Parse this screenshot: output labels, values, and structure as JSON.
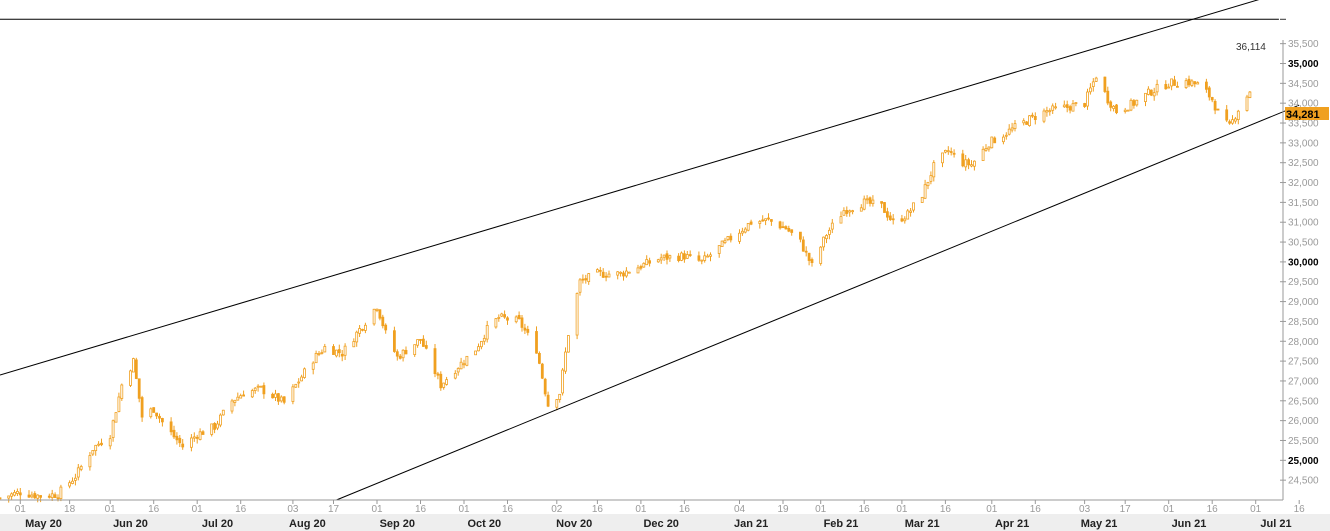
{
  "chart_data": {
    "type": "candlestick",
    "title": "",
    "xlabel": "",
    "ylabel": "",
    "ylim": [
      24000,
      36600
    ],
    "grid": false,
    "color": "#f0a020",
    "y_ticks": [
      {
        "value": 24500,
        "label": "24,500",
        "major": false
      },
      {
        "value": 25000,
        "label": "25,000",
        "major": true
      },
      {
        "value": 25500,
        "label": "25,500",
        "major": false
      },
      {
        "value": 26000,
        "label": "26,000",
        "major": false
      },
      {
        "value": 26500,
        "label": "26,500",
        "major": false
      },
      {
        "value": 27000,
        "label": "27,000",
        "major": false
      },
      {
        "value": 27500,
        "label": "27,500",
        "major": false
      },
      {
        "value": 28000,
        "label": "28,000",
        "major": false
      },
      {
        "value": 28500,
        "label": "28,500",
        "major": false
      },
      {
        "value": 29000,
        "label": "29,000",
        "major": false
      },
      {
        "value": 29500,
        "label": "29,500",
        "major": false
      },
      {
        "value": 30000,
        "label": "30,000",
        "major": true
      },
      {
        "value": 30500,
        "label": "30,500",
        "major": false
      },
      {
        "value": 31000,
        "label": "31,000",
        "major": false
      },
      {
        "value": 31500,
        "label": "31,500",
        "major": false
      },
      {
        "value": 32000,
        "label": "32,000",
        "major": false
      },
      {
        "value": 32500,
        "label": "32,500",
        "major": false
      },
      {
        "value": 33000,
        "label": "33,000",
        "major": false
      },
      {
        "value": 33500,
        "label": "33,500",
        "major": false
      },
      {
        "value": 34000,
        "label": "34,000",
        "major": false
      },
      {
        "value": 34500,
        "label": "34,500",
        "major": false
      },
      {
        "value": 35000,
        "label": "35,000",
        "major": true
      },
      {
        "value": 35500,
        "label": "35,500",
        "major": false
      }
    ],
    "x_day_ticks": [
      {
        "date": "2020-05-01",
        "label": "01"
      },
      {
        "date": "2020-05-18",
        "label": "18"
      },
      {
        "date": "2020-06-01",
        "label": "01"
      },
      {
        "date": "2020-06-16",
        "label": "16"
      },
      {
        "date": "2020-07-01",
        "label": "01"
      },
      {
        "date": "2020-07-16",
        "label": "16"
      },
      {
        "date": "2020-08-03",
        "label": "03"
      },
      {
        "date": "2020-08-17",
        "label": "17"
      },
      {
        "date": "2020-09-01",
        "label": "01"
      },
      {
        "date": "2020-09-16",
        "label": "16"
      },
      {
        "date": "2020-10-01",
        "label": "01"
      },
      {
        "date": "2020-10-16",
        "label": "16"
      },
      {
        "date": "2020-11-02",
        "label": "02"
      },
      {
        "date": "2020-11-16",
        "label": "16"
      },
      {
        "date": "2020-12-01",
        "label": "01"
      },
      {
        "date": "2020-12-16",
        "label": "16"
      },
      {
        "date": "2021-01-04",
        "label": "04"
      },
      {
        "date": "2021-01-19",
        "label": "19"
      },
      {
        "date": "2021-02-01",
        "label": "01"
      },
      {
        "date": "2021-02-16",
        "label": "16"
      },
      {
        "date": "2021-03-01",
        "label": "01"
      },
      {
        "date": "2021-03-16",
        "label": "16"
      },
      {
        "date": "2021-04-01",
        "label": "01"
      },
      {
        "date": "2021-04-16",
        "label": "16"
      },
      {
        "date": "2021-05-03",
        "label": "03"
      },
      {
        "date": "2021-05-17",
        "label": "17"
      },
      {
        "date": "2021-06-01",
        "label": "01"
      },
      {
        "date": "2021-06-16",
        "label": "16"
      },
      {
        "date": "2021-07-01",
        "label": "01"
      },
      {
        "date": "2021-07-16",
        "label": "16"
      }
    ],
    "x_month_labels": [
      {
        "date": "2020-05-09",
        "label": "May 20"
      },
      {
        "date": "2020-06-08",
        "label": "Jun 20"
      },
      {
        "date": "2020-07-08",
        "label": "Jul 20"
      },
      {
        "date": "2020-08-08",
        "label": "Aug 20"
      },
      {
        "date": "2020-09-08",
        "label": "Sep 20"
      },
      {
        "date": "2020-10-08",
        "label": "Oct 20"
      },
      {
        "date": "2020-11-08",
        "label": "Nov 20"
      },
      {
        "date": "2020-12-08",
        "label": "Dec 20"
      },
      {
        "date": "2021-01-08",
        "label": "Jan 21"
      },
      {
        "date": "2021-02-08",
        "label": "Feb 21"
      },
      {
        "date": "2021-03-08",
        "label": "Mar 21"
      },
      {
        "date": "2021-04-08",
        "label": "Apr 21"
      },
      {
        "date": "2021-05-08",
        "label": "May 21"
      },
      {
        "date": "2021-06-08",
        "label": "Jun 21"
      },
      {
        "date": "2021-07-08",
        "label": "Jul 21"
      }
    ],
    "price_path": [
      [
        "2020-04-24",
        24050
      ],
      [
        "2020-05-01",
        24200
      ],
      [
        "2020-05-08",
        24100
      ],
      [
        "2020-05-14",
        24150
      ],
      [
        "2020-05-20",
        24600
      ],
      [
        "2020-05-26",
        25300
      ],
      [
        "2020-06-01",
        25650
      ],
      [
        "2020-06-05",
        26900
      ],
      [
        "2020-06-09",
        27500
      ],
      [
        "2020-06-12",
        26100
      ],
      [
        "2020-06-16",
        26300
      ],
      [
        "2020-06-20",
        25850
      ],
      [
        "2020-06-26",
        25350
      ],
      [
        "2020-07-01",
        25650
      ],
      [
        "2020-07-07",
        25850
      ],
      [
        "2020-07-13",
        26500
      ],
      [
        "2020-07-17",
        26700
      ],
      [
        "2020-07-23",
        26800
      ],
      [
        "2020-07-31",
        26450
      ],
      [
        "2020-08-05",
        27000
      ],
      [
        "2020-08-10",
        27550
      ],
      [
        "2020-08-14",
        27850
      ],
      [
        "2020-08-20",
        27700
      ],
      [
        "2020-08-26",
        28300
      ],
      [
        "2020-09-01",
        28900
      ],
      [
        "2020-09-04",
        28200
      ],
      [
        "2020-09-08",
        27600
      ],
      [
        "2020-09-16",
        28050
      ],
      [
        "2020-09-23",
        26900
      ],
      [
        "2020-09-28",
        27300
      ],
      [
        "2020-10-05",
        27800
      ],
      [
        "2020-10-09",
        28300
      ],
      [
        "2020-10-13",
        28600
      ],
      [
        "2020-10-20",
        28500
      ],
      [
        "2020-10-26",
        27800
      ],
      [
        "2020-10-30",
        26400
      ],
      [
        "2020-11-03",
        26700
      ],
      [
        "2020-11-06",
        28200
      ],
      [
        "2020-11-10",
        29500
      ],
      [
        "2020-11-16",
        29700
      ],
      [
        "2020-11-24",
        29700
      ],
      [
        "2020-12-01",
        29900
      ],
      [
        "2020-12-08",
        30100
      ],
      [
        "2020-12-16",
        30150
      ],
      [
        "2020-12-22",
        30000
      ],
      [
        "2021-01-01",
        30600
      ],
      [
        "2021-01-08",
        31000
      ],
      [
        "2021-01-14",
        31050
      ],
      [
        "2021-01-20",
        30850
      ],
      [
        "2021-01-25",
        30500
      ],
      [
        "2021-01-29",
        29900
      ],
      [
        "2021-02-03",
        30700
      ],
      [
        "2021-02-09",
        31300
      ],
      [
        "2021-02-16",
        31500
      ],
      [
        "2021-02-22",
        31400
      ],
      [
        "2021-02-26",
        31000
      ],
      [
        "2021-03-03",
        31200
      ],
      [
        "2021-03-08",
        31700
      ],
      [
        "2021-03-12",
        32400
      ],
      [
        "2021-03-17",
        32800
      ],
      [
        "2021-03-22",
        32500
      ],
      [
        "2021-03-25",
        32450
      ],
      [
        "2021-03-31",
        33000
      ],
      [
        "2021-04-07",
        33300
      ],
      [
        "2021-04-14",
        33600
      ],
      [
        "2021-04-20",
        33800
      ],
      [
        "2021-04-27",
        33900
      ],
      [
        "2021-05-03",
        34000
      ],
      [
        "2021-05-07",
        34700
      ],
      [
        "2021-05-11",
        34100
      ],
      [
        "2021-05-14",
        33800
      ],
      [
        "2021-05-20",
        34000
      ],
      [
        "2021-05-26",
        34300
      ],
      [
        "2021-06-01",
        34500
      ],
      [
        "2021-06-07",
        34550
      ],
      [
        "2021-06-12",
        34450
      ],
      [
        "2021-06-16",
        34100
      ],
      [
        "2021-06-19",
        33600
      ],
      [
        "2021-06-22",
        33400
      ],
      [
        "2021-06-25",
        33850
      ],
      [
        "2021-06-29",
        34281
      ]
    ],
    "trendlines": [
      {
        "name": "upper-channel",
        "p1": [
          "2020-04-24",
          27150
        ],
        "p2": [
          "2021-07-16",
          36914
        ]
      },
      {
        "name": "lower-channel",
        "p1": [
          "2020-08-18",
          24000
        ],
        "p2": [
          "2021-07-16",
          33950
        ]
      },
      {
        "name": "horizontal-level",
        "p1": [
          "2020-04-24",
          36114
        ],
        "p2": [
          "2021-07-09",
          36114
        ]
      }
    ],
    "level_label": "36,114",
    "last_price_label": "34,281",
    "last_price": 34281
  }
}
